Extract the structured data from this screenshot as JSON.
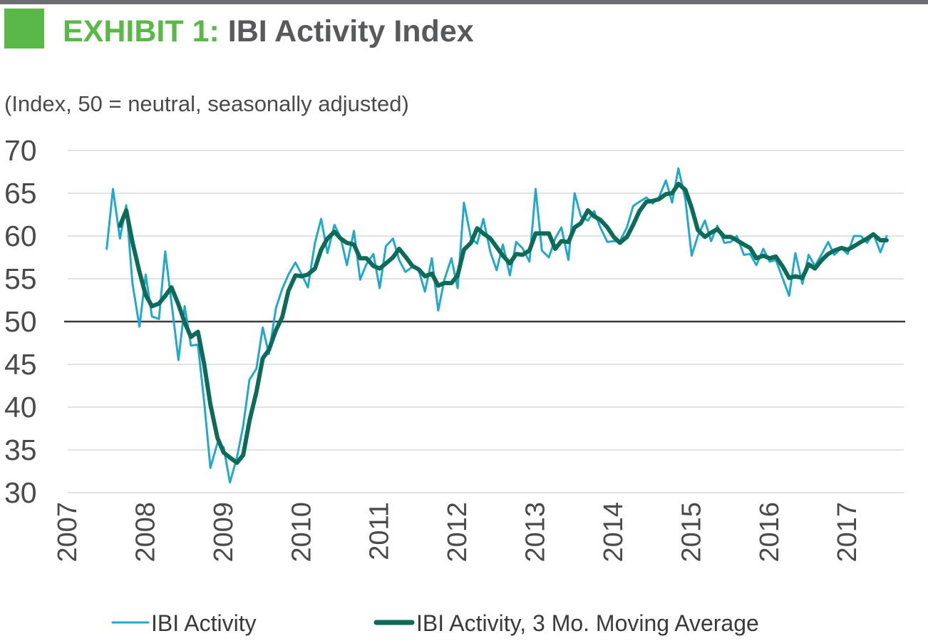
{
  "header": {
    "exhibit_label": "EXHIBIT 1:",
    "title": "IBI Activity Index",
    "subtitle": "(Index, 50 = neutral, seasonally adjusted)"
  },
  "colors": {
    "accent": "#5ab946",
    "title_gray": "#58595b",
    "series_activity": "#20a9cb",
    "series_moving_average": "#0d6b57",
    "neutral_line": "#3a3a3a",
    "grid": "#d9d9d9"
  },
  "chart_data": {
    "type": "line",
    "ylim": [
      30,
      70
    ],
    "yticks": [
      30,
      35,
      40,
      45,
      50,
      55,
      60,
      65,
      70
    ],
    "xlim": [
      2007,
      2017.72
    ],
    "xticks": [
      "2007",
      "2008",
      "2009",
      "2010",
      "2011",
      "2012",
      "2013",
      "2014",
      "2015",
      "2016",
      "2017"
    ],
    "reference_line": 50,
    "grid": true,
    "legend_position": "bottom",
    "series": [
      {
        "name": "IBI Activity",
        "points": [
          [
            2007.5,
            58.5
          ],
          [
            2007.58,
            65.5
          ],
          [
            2007.67,
            59.7
          ],
          [
            2007.75,
            63.6
          ],
          [
            2007.83,
            54.5
          ],
          [
            2007.92,
            49.4
          ],
          [
            2008.0,
            55.5
          ],
          [
            2008.08,
            50.6
          ],
          [
            2008.17,
            50.3
          ],
          [
            2008.25,
            58.2
          ],
          [
            2008.33,
            52.3
          ],
          [
            2008.42,
            45.5
          ],
          [
            2008.5,
            51.8
          ],
          [
            2008.58,
            47.2
          ],
          [
            2008.67,
            47.3
          ],
          [
            2008.75,
            40.6
          ],
          [
            2008.83,
            32.9
          ],
          [
            2008.92,
            35.8
          ],
          [
            2009.0,
            35.3
          ],
          [
            2009.08,
            31.2
          ],
          [
            2009.17,
            34.1
          ],
          [
            2009.25,
            37.8
          ],
          [
            2009.33,
            43.2
          ],
          [
            2009.42,
            44.5
          ],
          [
            2009.5,
            49.3
          ],
          [
            2009.58,
            46.2
          ],
          [
            2009.67,
            51.6
          ],
          [
            2009.75,
            53.8
          ],
          [
            2009.83,
            55.5
          ],
          [
            2009.92,
            56.9
          ],
          [
            2010.0,
            55.5
          ],
          [
            2010.08,
            54.0
          ],
          [
            2010.17,
            59.2
          ],
          [
            2010.25,
            62.0
          ],
          [
            2010.33,
            58.0
          ],
          [
            2010.42,
            61.3
          ],
          [
            2010.5,
            59.8
          ],
          [
            2010.58,
            56.6
          ],
          [
            2010.67,
            60.6
          ],
          [
            2010.75,
            54.9
          ],
          [
            2010.83,
            56.7
          ],
          [
            2010.92,
            57.9
          ],
          [
            2011.0,
            53.9
          ],
          [
            2011.08,
            58.8
          ],
          [
            2011.17,
            59.7
          ],
          [
            2011.25,
            57.2
          ],
          [
            2011.33,
            55.8
          ],
          [
            2011.42,
            56.4
          ],
          [
            2011.5,
            56.0
          ],
          [
            2011.58,
            53.5
          ],
          [
            2011.67,
            57.4
          ],
          [
            2011.75,
            51.3
          ],
          [
            2011.83,
            54.9
          ],
          [
            2011.92,
            57.4
          ],
          [
            2012.0,
            53.9
          ],
          [
            2012.08,
            63.9
          ],
          [
            2012.17,
            59.8
          ],
          [
            2012.25,
            59.1
          ],
          [
            2012.33,
            62.0
          ],
          [
            2012.42,
            58.1
          ],
          [
            2012.5,
            56.0
          ],
          [
            2012.58,
            59.0
          ],
          [
            2012.67,
            55.4
          ],
          [
            2012.75,
            59.3
          ],
          [
            2012.83,
            58.6
          ],
          [
            2012.92,
            57.0
          ],
          [
            2013.0,
            65.5
          ],
          [
            2013.08,
            58.3
          ],
          [
            2013.17,
            57.5
          ],
          [
            2013.25,
            59.7
          ],
          [
            2013.33,
            61.0
          ],
          [
            2013.42,
            57.2
          ],
          [
            2013.5,
            65.0
          ],
          [
            2013.58,
            62.3
          ],
          [
            2013.67,
            61.8
          ],
          [
            2013.75,
            62.9
          ],
          [
            2013.83,
            61.0
          ],
          [
            2013.92,
            59.3
          ],
          [
            2014.0,
            59.4
          ],
          [
            2014.08,
            59.4
          ],
          [
            2014.17,
            61.0
          ],
          [
            2014.25,
            63.5
          ],
          [
            2014.33,
            64.0
          ],
          [
            2014.42,
            64.5
          ],
          [
            2014.5,
            63.8
          ],
          [
            2014.58,
            64.5
          ],
          [
            2014.67,
            66.5
          ],
          [
            2014.75,
            63.9
          ],
          [
            2014.83,
            67.9
          ],
          [
            2014.92,
            64.3
          ],
          [
            2015.0,
            57.7
          ],
          [
            2015.08,
            60.0
          ],
          [
            2015.17,
            61.8
          ],
          [
            2015.25,
            59.4
          ],
          [
            2015.33,
            61.2
          ],
          [
            2015.42,
            59.2
          ],
          [
            2015.5,
            59.3
          ],
          [
            2015.58,
            60.0
          ],
          [
            2015.67,
            57.8
          ],
          [
            2015.75,
            57.9
          ],
          [
            2015.83,
            56.6
          ],
          [
            2015.92,
            58.5
          ],
          [
            2016.0,
            57.0
          ],
          [
            2016.08,
            57.2
          ],
          [
            2016.17,
            55.0
          ],
          [
            2016.25,
            53.0
          ],
          [
            2016.33,
            58.0
          ],
          [
            2016.42,
            54.4
          ],
          [
            2016.5,
            57.8
          ],
          [
            2016.58,
            56.5
          ],
          [
            2016.67,
            57.9
          ],
          [
            2016.75,
            59.3
          ],
          [
            2016.83,
            57.8
          ],
          [
            2016.92,
            58.6
          ],
          [
            2017.0,
            57.9
          ],
          [
            2017.08,
            60.0
          ],
          [
            2017.17,
            60.0
          ],
          [
            2017.25,
            59.2
          ],
          [
            2017.33,
            60.3
          ],
          [
            2017.42,
            58.1
          ],
          [
            2017.5,
            60.0
          ]
        ]
      },
      {
        "name": "IBI Activity, 3 Mo. Moving Average",
        "points": [
          [
            2007.67,
            61.2
          ],
          [
            2007.75,
            63.0
          ],
          [
            2007.83,
            59.3
          ],
          [
            2007.92,
            55.8
          ],
          [
            2008.0,
            53.1
          ],
          [
            2008.08,
            51.8
          ],
          [
            2008.17,
            52.1
          ],
          [
            2008.25,
            53.0
          ],
          [
            2008.33,
            54.0
          ],
          [
            2008.42,
            52.0
          ],
          [
            2008.5,
            49.9
          ],
          [
            2008.58,
            48.2
          ],
          [
            2008.67,
            48.8
          ],
          [
            2008.75,
            45.0
          ],
          [
            2008.83,
            40.3
          ],
          [
            2008.92,
            36.4
          ],
          [
            2009.0,
            34.7
          ],
          [
            2009.08,
            34.1
          ],
          [
            2009.17,
            33.5
          ],
          [
            2009.25,
            34.4
          ],
          [
            2009.33,
            38.4
          ],
          [
            2009.42,
            41.8
          ],
          [
            2009.5,
            45.7
          ],
          [
            2009.58,
            46.7
          ],
          [
            2009.67,
            49.0
          ],
          [
            2009.75,
            50.5
          ],
          [
            2009.83,
            53.6
          ],
          [
            2009.92,
            55.4
          ],
          [
            2010.0,
            55.3
          ],
          [
            2010.08,
            55.5
          ],
          [
            2010.17,
            56.2
          ],
          [
            2010.25,
            58.4
          ],
          [
            2010.33,
            59.7
          ],
          [
            2010.42,
            60.5
          ],
          [
            2010.5,
            59.7
          ],
          [
            2010.58,
            59.2
          ],
          [
            2010.67,
            59.0
          ],
          [
            2010.75,
            57.4
          ],
          [
            2010.83,
            57.4
          ],
          [
            2010.92,
            56.5
          ],
          [
            2011.0,
            56.2
          ],
          [
            2011.08,
            56.8
          ],
          [
            2011.17,
            57.5
          ],
          [
            2011.25,
            58.5
          ],
          [
            2011.33,
            57.6
          ],
          [
            2011.42,
            56.5
          ],
          [
            2011.5,
            56.1
          ],
          [
            2011.58,
            55.3
          ],
          [
            2011.67,
            55.6
          ],
          [
            2011.75,
            54.2
          ],
          [
            2011.83,
            54.5
          ],
          [
            2011.92,
            54.5
          ],
          [
            2012.0,
            55.4
          ],
          [
            2012.08,
            58.4
          ],
          [
            2012.17,
            59.2
          ],
          [
            2012.25,
            60.9
          ],
          [
            2012.33,
            60.3
          ],
          [
            2012.42,
            59.7
          ],
          [
            2012.5,
            58.7
          ],
          [
            2012.58,
            57.7
          ],
          [
            2012.67,
            56.8
          ],
          [
            2012.75,
            57.9
          ],
          [
            2012.83,
            57.8
          ],
          [
            2012.92,
            58.3
          ],
          [
            2013.0,
            60.3
          ],
          [
            2013.08,
            60.3
          ],
          [
            2013.17,
            60.3
          ],
          [
            2013.25,
            58.5
          ],
          [
            2013.33,
            59.4
          ],
          [
            2013.42,
            59.3
          ],
          [
            2013.5,
            61.0
          ],
          [
            2013.58,
            61.5
          ],
          [
            2013.67,
            63.0
          ],
          [
            2013.75,
            62.3
          ],
          [
            2013.83,
            61.9
          ],
          [
            2013.92,
            61.0
          ],
          [
            2014.0,
            59.9
          ],
          [
            2014.08,
            59.2
          ],
          [
            2014.17,
            59.9
          ],
          [
            2014.25,
            61.3
          ],
          [
            2014.33,
            62.9
          ],
          [
            2014.42,
            64.0
          ],
          [
            2014.5,
            64.1
          ],
          [
            2014.58,
            64.3
          ],
          [
            2014.67,
            64.9
          ],
          [
            2014.75,
            65.0
          ],
          [
            2014.83,
            66.1
          ],
          [
            2014.92,
            65.4
          ],
          [
            2015.0,
            63.3
          ],
          [
            2015.08,
            60.7
          ],
          [
            2015.17,
            59.9
          ],
          [
            2015.25,
            60.4
          ],
          [
            2015.33,
            60.8
          ],
          [
            2015.42,
            59.9
          ],
          [
            2015.5,
            59.9
          ],
          [
            2015.58,
            59.5
          ],
          [
            2015.67,
            59.0
          ],
          [
            2015.75,
            58.6
          ],
          [
            2015.83,
            57.4
          ],
          [
            2015.92,
            57.7
          ],
          [
            2016.0,
            57.4
          ],
          [
            2016.08,
            57.6
          ],
          [
            2016.17,
            56.4
          ],
          [
            2016.25,
            55.1
          ],
          [
            2016.33,
            55.3
          ],
          [
            2016.42,
            55.1
          ],
          [
            2016.5,
            56.7
          ],
          [
            2016.58,
            56.2
          ],
          [
            2016.67,
            57.2
          ],
          [
            2016.75,
            57.9
          ],
          [
            2016.83,
            58.3
          ],
          [
            2016.92,
            58.6
          ],
          [
            2017.0,
            58.4
          ],
          [
            2017.08,
            58.8
          ],
          [
            2017.17,
            59.3
          ],
          [
            2017.25,
            59.7
          ],
          [
            2017.33,
            60.2
          ],
          [
            2017.42,
            59.5
          ],
          [
            2017.5,
            59.5
          ]
        ]
      }
    ]
  }
}
